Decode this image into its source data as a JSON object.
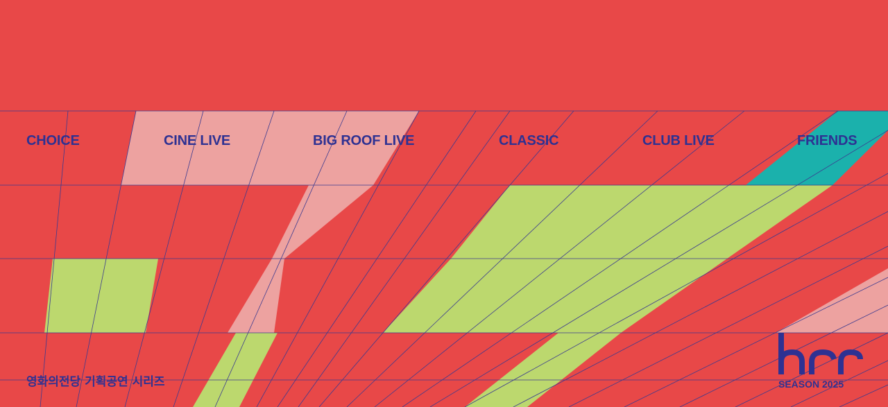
{
  "nav": {
    "items": [
      {
        "id": "choice",
        "label": "CHOICE"
      },
      {
        "id": "cine-live",
        "label": "CINE LIVE"
      },
      {
        "id": "big-roof-live",
        "label": "BIG ROOF LIVE"
      },
      {
        "id": "classic",
        "label": "CLASSIC"
      },
      {
        "id": "club-live",
        "label": "CLUB LIVE"
      },
      {
        "id": "friends",
        "label": "FRIENDS"
      }
    ]
  },
  "subtitle": "영화의전당 기획공연 시리즈",
  "brand": {
    "logo": "bcc-logo",
    "season": "SEASON 2025"
  },
  "colors": {
    "background": "#e84848",
    "text": "#2e3192",
    "line": "#3b3a8f",
    "pink": "#eda2a0",
    "lime": "#bcd86e",
    "teal": "#1bb1ac"
  }
}
